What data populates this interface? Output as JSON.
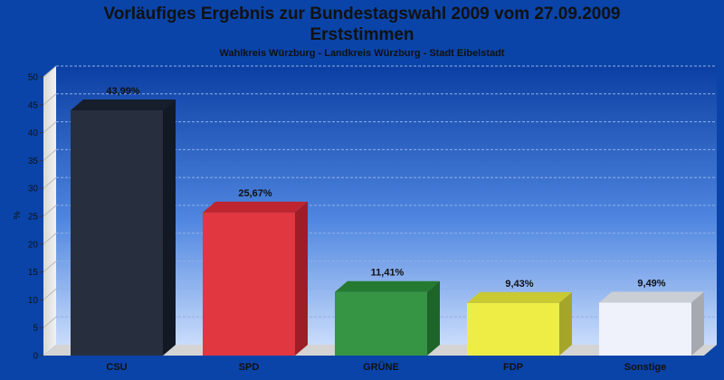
{
  "title_line1": "Vorläufiges Ergebnis zur Bundestagswahl 2009 vom 27.09.2009",
  "title_line2": "Erststimmen",
  "subtitle": "Wahlkreis Würzburg - Landkreis Würzburg - Stadt Eibelstadt",
  "chart_data": {
    "type": "bar",
    "categories": [
      "CSU",
      "SPD",
      "GRÜNE",
      "FDP",
      "Sonstige"
    ],
    "values": [
      43.99,
      25.67,
      11.41,
      9.43,
      9.49
    ],
    "value_labels": [
      "43,99%",
      "25,67%",
      "11,41%",
      "9,43%",
      "9,49%"
    ],
    "colors": [
      "#1a2233",
      "#e02b36",
      "#2a8f3a",
      "#ecec3a",
      "#eef2fb"
    ],
    "ylabel": "%",
    "ylim": [
      0,
      50
    ],
    "yticks": [
      0,
      5,
      10,
      15,
      20,
      25,
      30,
      35,
      40,
      45,
      50
    ],
    "grid": true,
    "style": "3d"
  }
}
